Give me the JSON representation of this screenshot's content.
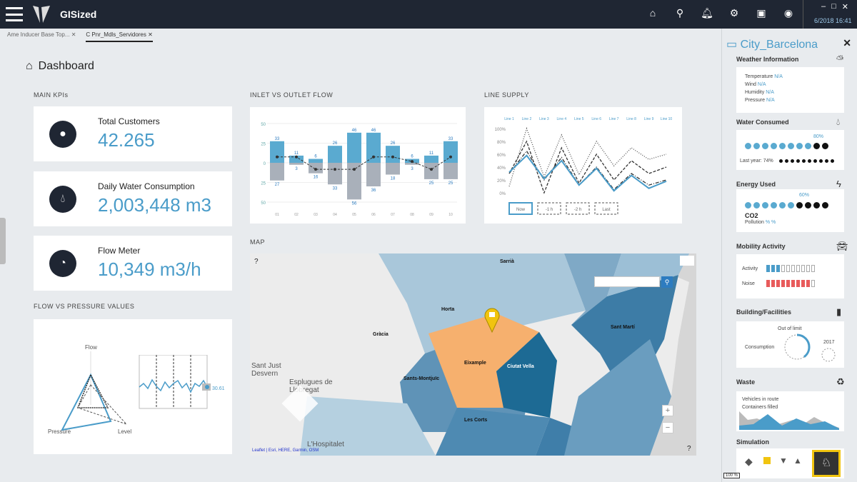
{
  "app": {
    "name": "GISized",
    "clock": "6/2018 16:41",
    "window_controls": [
      "–",
      "□",
      "✕"
    ]
  },
  "toolbar_icons": [
    "home-icon",
    "map-pin-icon",
    "bell-icon",
    "gear-icon",
    "help-icon",
    "user-icon"
  ],
  "tabs": [
    {
      "label": "Ame Inducer Base Top...",
      "active": false
    },
    {
      "label": "C Pnr_Mdls_Servidores",
      "active": true
    }
  ],
  "page": {
    "title": "Dashboard"
  },
  "sections": {
    "kpis": "MAIN KPIs",
    "inlet": "INLET VS OUTLET FLOW",
    "line": "LINE SUPPLY",
    "flow": "FLOW VS PRESSURE VALUES",
    "map": "MAP"
  },
  "kpis": [
    {
      "label": "Total Customers",
      "value": "42.265",
      "icon": "user-icon"
    },
    {
      "label": "Daily Water Consumption",
      "value": "2,003,448 m3",
      "icon": "water-tap-icon"
    },
    {
      "label": "Flow Meter",
      "value": "10,349 m3/h",
      "icon": "gauge-icon"
    }
  ],
  "chart_data": [
    {
      "type": "bar",
      "title": "INLET VS OUTLET FLOW",
      "categories": [
        "01",
        "02",
        "03",
        "04",
        "05",
        "06",
        "07",
        "08",
        "09",
        "10"
      ],
      "series": [
        {
          "values": [
            33,
            11,
            6,
            26,
            46,
            46,
            26,
            6,
            11,
            33
          ]
        },
        {
          "values": [
            -27,
            -3,
            -16,
            -33,
            -56,
            -36,
            -18,
            -3,
            -25,
            -25
          ]
        }
      ],
      "net_line": [
        9,
        9,
        -10,
        -10,
        -10,
        9,
        9,
        2,
        -10,
        9
      ],
      "yticks": [
        "50",
        "25",
        "0",
        "25",
        "50"
      ],
      "ylim": [
        -60,
        60
      ],
      "colors": {
        "inlet": "#5aaad0",
        "outlet": "#a9b0ba"
      }
    },
    {
      "type": "line",
      "title": "LINE SUPPLY",
      "categories": [
        "Line 1",
        "Line 2",
        "Line 3",
        "Line 4",
        "Line 5",
        "Line 6",
        "Line 7",
        "Line 8",
        "Line 9",
        "Line 10"
      ],
      "yticks": [
        "0%",
        "20%",
        "40%",
        "60%",
        "80%",
        "100%"
      ],
      "ylim": [
        0,
        100
      ],
      "series": [
        {
          "values": [
            32,
            58,
            22,
            50,
            12,
            38,
            3,
            27,
            7,
            18
          ],
          "style": "solid",
          "color": "#4a9cc9"
        },
        {
          "values": [
            30,
            65,
            20,
            55,
            12,
            40,
            5,
            30,
            12,
            20
          ],
          "style": "dashdot",
          "color": "#333"
        },
        {
          "values": [
            30,
            80,
            0,
            70,
            15,
            60,
            20,
            50,
            30,
            40
          ],
          "style": "dashed",
          "color": "#333"
        },
        {
          "values": [
            10,
            100,
            25,
            90,
            28,
            80,
            42,
            70,
            52,
            60
          ],
          "style": "dotted",
          "color": "#555"
        }
      ],
      "legend": [
        "Now",
        "-1 h",
        "-2 h",
        "Last"
      ]
    },
    {
      "type": "radar",
      "axes": [
        "Flow",
        "Pressure",
        "Level"
      ]
    },
    {
      "type": "line",
      "title": "",
      "current_value": "30.61"
    }
  ],
  "map": {
    "labels": [
      "Horta",
      "Gràcia",
      "Sant Martí",
      "Eixample",
      "Sants-Montjuïc",
      "Les Corts",
      "Sarrià",
      "Ciutat Vella"
    ],
    "places": [
      "Sant Just Desvern",
      "Esplugues de Llobregat",
      "L'Hospitalet"
    ],
    "attribution": "Leaflet | Esri, HERE, Garmin, OSM",
    "zoom_in": "+",
    "zoom_out": "−"
  },
  "right_panel": {
    "title": "City_Barcelona",
    "weather": {
      "title": "Weather Information",
      "rows": [
        {
          "k": "Temperature",
          "v": "N/A"
        },
        {
          "k": "Wind",
          "v": "N/A"
        },
        {
          "k": "Humidity",
          "v": "N/A"
        },
        {
          "k": "Pressure",
          "v": "N/A"
        }
      ]
    },
    "water": {
      "title": "Water Consumed",
      "pct": "80%",
      "last_year_label": "Last year:",
      "last_year": "74%"
    },
    "energy": {
      "title": "Energy Used",
      "pct": "60%",
      "co2": "CO2",
      "pollution_label": "Pollution",
      "pollution": "% %"
    },
    "mobility": {
      "title": "Mobility Activity",
      "activity_label": "Activity",
      "noise_label": "Noise",
      "activity_level": 0.3,
      "noise_level": 0.9
    },
    "building": {
      "title": "Building/Facilities",
      "out_of_limit": "Out of limit",
      "consumption": "Consumption",
      "other": "2017",
      "ring_level": 0.4
    },
    "waste": {
      "title": "Waste",
      "vehicles": "Vehicles in route",
      "containers": "Containers filled"
    },
    "simulation": {
      "title": "Simulation"
    },
    "zoom_ctl": "100 %"
  }
}
